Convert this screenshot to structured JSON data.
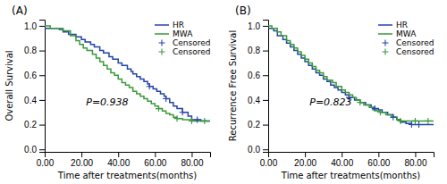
{
  "chart_data": [
    {
      "type": "line",
      "title": "(A)",
      "x_label": "Time after treatments(months)",
      "y_label": "Overall Survival",
      "annotation": "P=0.938",
      "legend": "upper right",
      "grid": false,
      "xlim": [
        0,
        90
      ],
      "ylim": [
        -0.02,
        1.05
      ],
      "xticks": [
        {
          "value": 0.0,
          "label": "0.00"
        },
        {
          "value": 20.0,
          "label": "20.00"
        },
        {
          "value": 40.0,
          "label": "40.00"
        },
        {
          "value": 60.0,
          "label": "60.00"
        },
        {
          "value": 80.0,
          "label": "80.00"
        }
      ],
      "yticks": [
        {
          "value": 0.0,
          "label": "0.0"
        },
        {
          "value": 0.2,
          "label": "0.2"
        },
        {
          "value": 0.4,
          "label": "0.4"
        },
        {
          "value": 0.6,
          "label": "0.6"
        },
        {
          "value": 0.8,
          "label": "0.8"
        },
        {
          "value": 1.0,
          "label": "1.0"
        }
      ],
      "series": [
        {
          "name": "HR",
          "type": "step",
          "color": "#2444a8",
          "x": [
            0,
            8,
            10,
            13,
            17,
            20,
            22,
            25,
            27,
            30,
            32,
            35,
            37,
            40,
            42,
            45,
            47,
            48,
            50,
            52,
            54,
            56,
            57,
            59,
            61,
            63,
            65,
            66,
            68,
            70,
            72,
            75,
            78,
            80,
            85,
            90
          ],
          "values": [
            0.98,
            0.97,
            0.95,
            0.93,
            0.91,
            0.89,
            0.87,
            0.85,
            0.83,
            0.8,
            0.78,
            0.75,
            0.73,
            0.7,
            0.68,
            0.65,
            0.63,
            0.61,
            0.59,
            0.57,
            0.55,
            0.53,
            0.51,
            0.49,
            0.47,
            0.45,
            0.43,
            0.41,
            0.38,
            0.35,
            0.33,
            0.3,
            0.27,
            0.24,
            0.23,
            0.23
          ]
        },
        {
          "name": "MWA",
          "type": "step",
          "color": "#3a9a3a",
          "x": [
            0,
            3,
            10,
            14,
            17,
            19,
            21,
            23,
            26,
            28,
            30,
            32,
            34,
            36,
            38,
            40,
            42,
            44,
            46,
            48,
            50,
            52,
            54,
            56,
            58,
            60,
            62,
            64,
            66,
            68,
            70,
            72,
            75,
            80,
            83,
            90
          ],
          "values": [
            1.0,
            0.98,
            0.96,
            0.92,
            0.88,
            0.85,
            0.82,
            0.8,
            0.77,
            0.74,
            0.71,
            0.68,
            0.65,
            0.62,
            0.6,
            0.57,
            0.54,
            0.52,
            0.5,
            0.47,
            0.45,
            0.43,
            0.41,
            0.39,
            0.37,
            0.35,
            0.33,
            0.31,
            0.29,
            0.28,
            0.26,
            0.25,
            0.24,
            0.23,
            0.23,
            0.23
          ]
        },
        {
          "name": "Censored",
          "type": "scatter",
          "marker": "plus",
          "color": "#2444a8",
          "x": [
            57,
            66,
            75,
            83
          ],
          "values": [
            0.51,
            0.41,
            0.3,
            0.24
          ]
        },
        {
          "name": "Censored",
          "type": "scatter",
          "marker": "plus",
          "color": "#3a9a3a",
          "x": [
            62,
            72,
            80,
            87
          ],
          "values": [
            0.33,
            0.25,
            0.23,
            0.23
          ]
        }
      ]
    },
    {
      "type": "line",
      "title": "(B)",
      "x_label": "Time after treatments(months)",
      "y_label": "Recurrence Free Survival",
      "annotation": "P=0.823",
      "legend": "upper right",
      "grid": false,
      "xlim": [
        0,
        90
      ],
      "ylim": [
        -0.02,
        1.05
      ],
      "xticks": [
        {
          "value": 0.0,
          "label": "0.00"
        },
        {
          "value": 20.0,
          "label": "20.00"
        },
        {
          "value": 40.0,
          "label": "40.00"
        },
        {
          "value": 60.0,
          "label": "60.00"
        },
        {
          "value": 80.0,
          "label": "80.00"
        }
      ],
      "yticks": [
        {
          "value": 0.0,
          "label": "0.0"
        },
        {
          "value": 0.2,
          "label": "0.2"
        },
        {
          "value": 0.4,
          "label": "0.4"
        },
        {
          "value": 0.6,
          "label": "0.6"
        },
        {
          "value": 0.8,
          "label": "0.8"
        },
        {
          "value": 1.0,
          "label": "1.0"
        }
      ],
      "series": [
        {
          "name": "HR",
          "type": "step",
          "color": "#2444a8",
          "x": [
            0,
            3,
            5,
            8,
            10,
            12,
            14,
            16,
            18,
            20,
            22,
            24,
            26,
            28,
            30,
            32,
            34,
            36,
            38,
            40,
            42,
            44,
            47,
            50,
            53,
            56,
            58,
            60,
            62,
            65,
            68,
            70,
            72,
            75,
            78,
            80,
            82,
            85,
            90
          ],
          "values": [
            0.98,
            0.96,
            0.92,
            0.89,
            0.86,
            0.83,
            0.8,
            0.77,
            0.74,
            0.71,
            0.68,
            0.65,
            0.62,
            0.6,
            0.57,
            0.55,
            0.52,
            0.5,
            0.48,
            0.46,
            0.44,
            0.42,
            0.4,
            0.38,
            0.36,
            0.34,
            0.33,
            0.32,
            0.3,
            0.28,
            0.26,
            0.24,
            0.22,
            0.21,
            0.2,
            0.2,
            0.2,
            0.2,
            0.2
          ]
        },
        {
          "name": "MWA",
          "type": "step",
          "color": "#3a9a3a",
          "x": [
            0,
            2,
            5,
            7,
            10,
            12,
            14,
            16,
            18,
            20,
            22,
            24,
            26,
            28,
            30,
            32,
            35,
            37,
            40,
            42,
            44,
            46,
            48,
            50,
            52,
            55,
            57,
            59,
            61,
            64,
            67,
            70,
            72,
            75,
            78,
            80,
            83,
            87,
            90
          ],
          "values": [
            1.0,
            0.98,
            0.95,
            0.92,
            0.88,
            0.85,
            0.82,
            0.79,
            0.76,
            0.73,
            0.7,
            0.67,
            0.64,
            0.62,
            0.59,
            0.56,
            0.54,
            0.51,
            0.48,
            0.46,
            0.44,
            0.42,
            0.4,
            0.38,
            0.36,
            0.34,
            0.32,
            0.31,
            0.3,
            0.28,
            0.26,
            0.24,
            0.23,
            0.23,
            0.23,
            0.23,
            0.23,
            0.23,
            0.23
          ]
        },
        {
          "name": "Censored",
          "type": "scatter",
          "marker": "plus",
          "color": "#2444a8",
          "x": [
            44,
            58,
            68,
            78,
            82
          ],
          "values": [
            0.42,
            0.33,
            0.26,
            0.2,
            0.2
          ]
        },
        {
          "name": "Censored",
          "type": "scatter",
          "marker": "plus",
          "color": "#3a9a3a",
          "x": [
            50,
            61,
            72,
            80,
            87
          ],
          "values": [
            0.38,
            0.3,
            0.23,
            0.23,
            0.23
          ]
        }
      ]
    }
  ]
}
